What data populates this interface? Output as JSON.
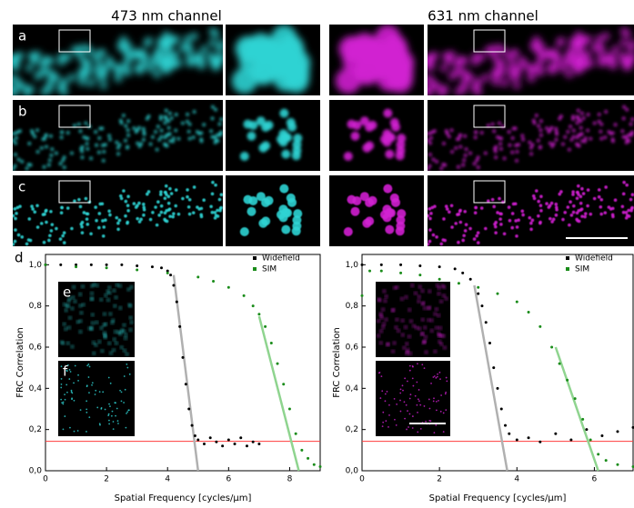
{
  "panel_titles": [
    "473 nm channel",
    "631 nm channel"
  ],
  "panel_labels": [
    "a",
    "b",
    "c",
    "d",
    "e",
    "f"
  ],
  "chart_data": [
    {
      "type": "scatter",
      "xlabel": "Spatial Frequency [cycles/µm]",
      "ylabel": "FRC Correlation",
      "xlim": [
        0,
        9
      ],
      "ylim": [
        0,
        1.05
      ],
      "xticks": [
        0,
        2,
        4,
        6,
        8
      ],
      "yticks": [
        {
          "value": 0,
          "label": "0,0"
        },
        {
          "value": 0.2,
          "label": "0,2"
        },
        {
          "value": 0.4,
          "label": "0,4"
        },
        {
          "value": 0.6,
          "label": "0,6"
        },
        {
          "value": 0.8,
          "label": "0,8"
        },
        {
          "value": 1,
          "label": "1,0"
        }
      ],
      "legend": "upper right",
      "threshold": 0.143,
      "threshold_color": "#ff3b3b",
      "series": [
        {
          "name": "Widefield",
          "color": "#000000",
          "x": [
            0,
            0.5,
            1,
            1.5,
            2,
            2.5,
            3,
            3.5,
            3.8,
            4.0,
            4.1,
            4.2,
            4.3,
            4.4,
            4.5,
            4.6,
            4.7,
            4.8,
            4.9,
            5.0,
            5.2,
            5.4,
            5.6,
            5.8,
            6.0,
            6.2,
            6.4,
            6.6,
            6.8,
            7.0
          ],
          "values": [
            1,
            1,
            1,
            1,
            1,
            1,
            0.995,
            0.99,
            0.985,
            0.97,
            0.95,
            0.9,
            0.82,
            0.7,
            0.55,
            0.42,
            0.3,
            0.22,
            0.17,
            0.15,
            0.13,
            0.16,
            0.14,
            0.12,
            0.15,
            0.13,
            0.16,
            0.12,
            0.14,
            0.13
          ]
        },
        {
          "name": "SIM",
          "color": "#1a8c1a",
          "x": [
            0,
            1,
            2,
            3,
            4,
            5,
            5.5,
            6,
            6.5,
            6.8,
            7,
            7.2,
            7.4,
            7.6,
            7.8,
            8.0,
            8.2,
            8.4,
            8.6,
            8.8,
            9.0
          ],
          "values": [
            1,
            0.99,
            0.985,
            0.975,
            0.96,
            0.94,
            0.92,
            0.89,
            0.85,
            0.8,
            0.76,
            0.7,
            0.62,
            0.52,
            0.42,
            0.3,
            0.18,
            0.1,
            0.06,
            0.03,
            0.02
          ]
        }
      ],
      "fits": [
        {
          "color": "#b0b0b0",
          "x": [
            4.2,
            5.0
          ],
          "values": [
            0.95,
            0
          ]
        },
        {
          "color": "#8fd48f",
          "x": [
            7.0,
            8.3
          ],
          "values": [
            0.75,
            0
          ]
        }
      ]
    },
    {
      "type": "scatter",
      "xlabel": "Spatial Frequency [cycles/µm]",
      "ylabel": "FRC Correlation",
      "xlim": [
        0,
        7
      ],
      "ylim": [
        0,
        1.05
      ],
      "xticks": [
        0,
        2,
        4,
        6
      ],
      "yticks": [
        {
          "value": 0,
          "label": "0,0"
        },
        {
          "value": 0.2,
          "label": "0,2"
        },
        {
          "value": 0.4,
          "label": "0,4"
        },
        {
          "value": 0.6,
          "label": "0,6"
        },
        {
          "value": 0.8,
          "label": "0,8"
        },
        {
          "value": 1,
          "label": "1,0"
        }
      ],
      "legend": "upper right",
      "threshold": 0.143,
      "threshold_color": "#ff3b3b",
      "series": [
        {
          "name": "Widefield",
          "color": "#000000",
          "x": [
            0,
            0.5,
            1,
            1.5,
            2,
            2.4,
            2.6,
            2.8,
            3.0,
            3.1,
            3.2,
            3.3,
            3.4,
            3.5,
            3.6,
            3.7,
            3.8,
            4.0,
            4.3,
            4.6,
            5.0,
            5.4,
            5.8,
            6.2,
            6.6,
            7.0
          ],
          "values": [
            1,
            1,
            1,
            0.995,
            0.99,
            0.98,
            0.96,
            0.93,
            0.86,
            0.8,
            0.72,
            0.62,
            0.5,
            0.4,
            0.3,
            0.22,
            0.18,
            0.15,
            0.16,
            0.14,
            0.18,
            0.15,
            0.2,
            0.17,
            0.19,
            0.21
          ]
        },
        {
          "name": "SIM",
          "color": "#1a8c1a",
          "x": [
            0,
            0.2,
            0.5,
            1,
            1.5,
            2,
            2.5,
            3,
            3.5,
            4,
            4.3,
            4.6,
            4.9,
            5.1,
            5.3,
            5.5,
            5.7,
            5.9,
            6.1,
            6.3,
            6.6,
            7.0
          ],
          "values": [
            0.85,
            0.97,
            0.97,
            0.96,
            0.95,
            0.93,
            0.91,
            0.89,
            0.86,
            0.82,
            0.77,
            0.7,
            0.6,
            0.52,
            0.44,
            0.35,
            0.25,
            0.15,
            0.08,
            0.05,
            0.03,
            0.02
          ]
        }
      ],
      "fits": [
        {
          "color": "#b0b0b0",
          "x": [
            2.9,
            3.75
          ],
          "values": [
            0.9,
            0
          ]
        },
        {
          "color": "#8fd48f",
          "x": [
            5.0,
            6.1
          ],
          "values": [
            0.6,
            0
          ]
        }
      ]
    }
  ]
}
